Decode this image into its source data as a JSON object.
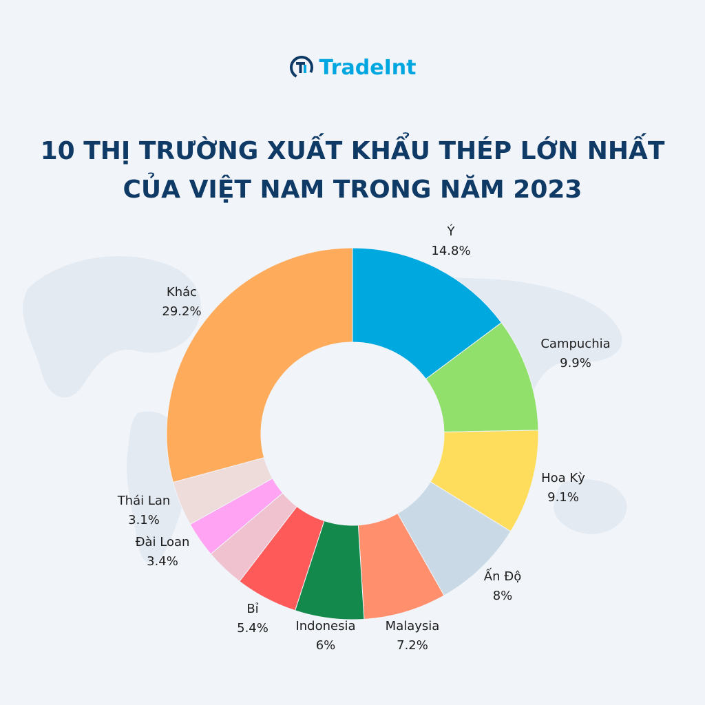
{
  "brand": {
    "name": "TradeInt",
    "color": "#00a6e0"
  },
  "title_lines": [
    "10 THỊ TRƯỜNG XUẤT KHẨU THÉP LỚN NHẤT",
    "CỦA VIỆT NAM TRONG NĂM 2023"
  ],
  "colors": {
    "background": "#f1f4f9",
    "title": "#0f3a66"
  },
  "chart_data": {
    "type": "pie",
    "variant": "donut",
    "title": "10 THỊ TRƯỜNG XUẤT KHẨU THÉP LỚN NHẤT CỦA VIỆT NAM TRONG NĂM 2023",
    "start": "12 o'clock",
    "direction": "clockwise",
    "slices": [
      {
        "label": "Ý",
        "value": 14.8,
        "value_text": "14.8%",
        "color": "#00a8e0"
      },
      {
        "label": "Campuchia",
        "value": 9.9,
        "value_text": "9.9%",
        "color": "#90e06b"
      },
      {
        "label": "Hoa Kỳ",
        "value": 9.1,
        "value_text": "9.1%",
        "color": "#ffdd5c"
      },
      {
        "label": "Ấn Độ",
        "value": 8,
        "value_text": "8%",
        "color": "#c9dae6"
      },
      {
        "label": "Malaysia",
        "value": 7.2,
        "value_text": "7.2%",
        "color": "#ff8f6d"
      },
      {
        "label": "Indonesia",
        "value": 6,
        "value_text": "6%",
        "color": "#138a4b"
      },
      {
        "label": "Bỉ",
        "value": 5.4,
        "value_text": "5.4%",
        "color": "#ff5a5a"
      },
      {
        "label": "Đài Loan",
        "value": 3.4,
        "value_text": "3.4%",
        "color": "#f0c2cf"
      },
      {
        "label": "Thái Lan",
        "value": 3.1,
        "value_text": "3.1%",
        "color": "#ffa3f2"
      },
      {
        "label": "",
        "value": 3.9,
        "value_text": "",
        "color": "#eedcda"
      },
      {
        "label": "Khác",
        "value": 29.2,
        "value_text": "29.2%",
        "color": "#ffab5c"
      }
    ]
  }
}
